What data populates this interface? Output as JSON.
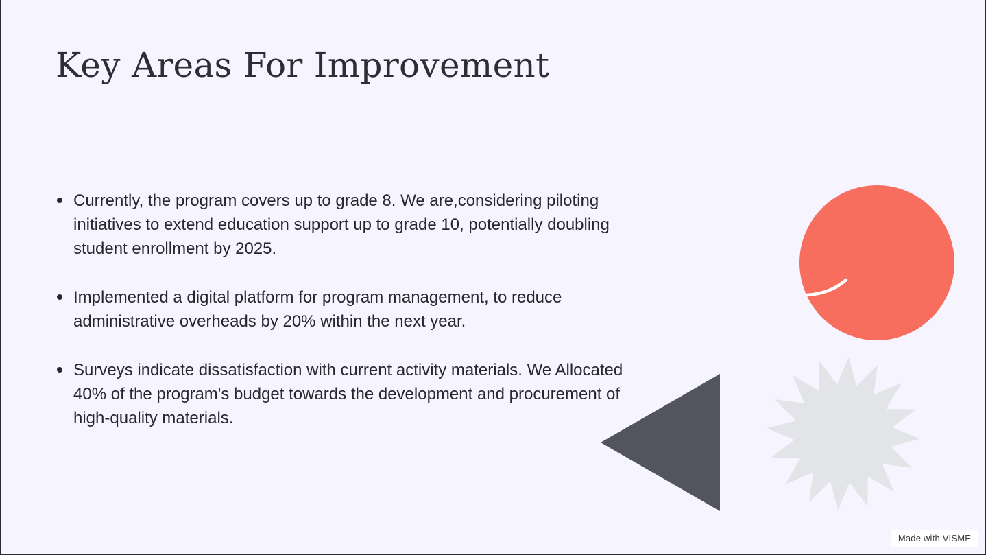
{
  "slide": {
    "title": "Key Areas For Improvement",
    "bullets": [
      {
        "text": "Currently, the program covers up to grade 8. We are,considering piloting initiatives to extend education support up to grade 10, potentially doubling student enrollment by 2025."
      },
      {
        "text": "Implemented a digital platform for program management, to reduce administrative overheads by 20% within the next year."
      },
      {
        "text": "Surveys indicate dissatisfaction with current activity materials. We Allocated 40% of the program's budget towards the development and procurement of high-quality materials."
      }
    ]
  },
  "decorations": {
    "circle_color": "#f76e5f",
    "triangle_color": "#52545e",
    "starburst_color": "#e3e4e8",
    "arc_color": "#ffffff"
  },
  "badge": {
    "label": "Made with VISME"
  },
  "colors": {
    "background": "#f5f4ff",
    "text": "#26282e",
    "title": "#2c2e33"
  }
}
